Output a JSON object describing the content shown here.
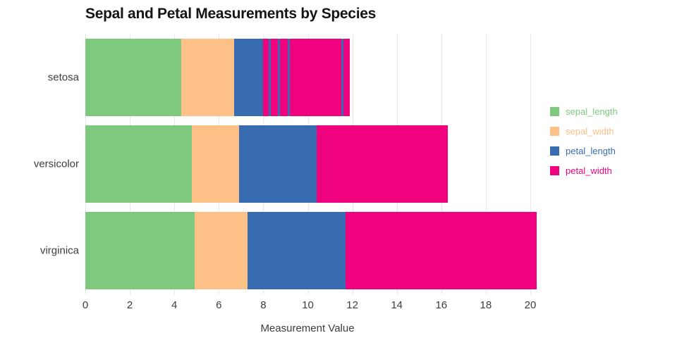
{
  "chart_data": {
    "type": "bar",
    "orientation": "horizontal",
    "stacked": true,
    "title": "Sepal and Petal Measurements by Species",
    "xlabel": "Measurement Value",
    "ylabel": "",
    "categories": [
      "setosa",
      "versicolor",
      "virginica"
    ],
    "series": [
      {
        "name": "sepal_length",
        "color": "#7fc97f",
        "values": [
          4.3,
          4.8,
          4.9
        ]
      },
      {
        "name": "sepal_width",
        "color": "#fdc086",
        "values": [
          2.4,
          2.1,
          2.4
        ]
      },
      {
        "name": "petal_length",
        "color": "#386cb0",
        "values": [
          1.3,
          3.5,
          4.4
        ]
      },
      {
        "name": "petal_width",
        "color": "#f0027f",
        "values": [
          3.9,
          5.9,
          8.6
        ]
      }
    ],
    "totals": [
      11.9,
      16.3,
      20.3
    ],
    "x_ticks": [
      0,
      2,
      4,
      6,
      8,
      10,
      12,
      14,
      16,
      18,
      20
    ],
    "xlim": [
      0,
      20
    ],
    "grid": "vertical",
    "legend_position": "right",
    "overlay_stripes": [
      {
        "category": "setosa",
        "color": "#386cb0",
        "positions": [
          8.25,
          8.65,
          9.1,
          11.5
        ],
        "width": 0.1
      }
    ]
  }
}
